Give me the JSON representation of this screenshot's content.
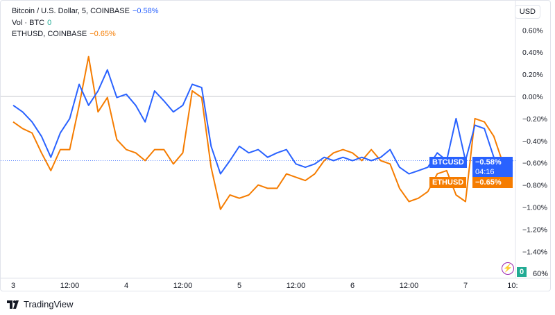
{
  "legend": {
    "main_title": "Bitcoin / U.S. Dollar, 5, COINBASE",
    "main_change": "−0.58%",
    "vol_label": "Vol · BTC",
    "vol_value": "0",
    "compare_title": "ETHUSD, COINBASE",
    "compare_change": "−0.65%"
  },
  "currency_button": "USD",
  "price_tags": {
    "btc_label": "BTCUSD",
    "btc_value": "−0.58%",
    "btc_countdown": "04:16",
    "eth_label": "ETHUSD",
    "eth_value": "−0.65%"
  },
  "volume_badge": "0",
  "volume_scale_label": "60%",
  "brand": "TradingView",
  "colors": {
    "btc": "#2962ff",
    "eth": "#f57c00",
    "volume_up": "#26a69a",
    "volume_down": "#ef5350",
    "alert": "#9c27b0"
  },
  "icons": {
    "alert": "lightning-icon",
    "logo": "tradingview-logo-icon"
  },
  "chart_data": {
    "type": "line",
    "ylim": [
      -1.5,
      0.7
    ],
    "y_ticks": [
      "0.60%",
      "0.40%",
      "0.20%",
      "0.00%",
      "−0.20%",
      "−0.40%",
      "−0.60%",
      "−0.80%",
      "−1.00%",
      "−1.20%",
      "−1.40%"
    ],
    "y_tick_values": [
      0.6,
      0.4,
      0.2,
      0,
      -0.2,
      -0.4,
      -0.6,
      -0.8,
      -1.0,
      -1.2,
      -1.4
    ],
    "x_ticks": [
      "3",
      "12:00",
      "4",
      "12:00",
      "5",
      "12:00",
      "6",
      "12:00",
      "7",
      "10:"
    ],
    "x_tick_times": [
      "3 00:00",
      "3 12:00",
      "4 00:00",
      "4 12:00",
      "5 00:00",
      "5 12:00",
      "6 00:00",
      "6 12:00",
      "7 00:00",
      "7 10:00"
    ],
    "x": [
      "3 00:00",
      "3 02:00",
      "3 04:00",
      "3 06:00",
      "3 08:00",
      "3 10:00",
      "3 12:00",
      "3 14:00",
      "3 16:00",
      "3 18:00",
      "3 20:00",
      "3 22:00",
      "4 00:00",
      "4 02:00",
      "4 04:00",
      "4 06:00",
      "4 08:00",
      "4 10:00",
      "4 12:00",
      "4 14:00",
      "4 16:00",
      "4 18:00",
      "4 20:00",
      "4 22:00",
      "5 00:00",
      "5 02:00",
      "5 04:00",
      "5 06:00",
      "5 08:00",
      "5 10:00",
      "5 12:00",
      "5 14:00",
      "5 16:00",
      "5 18:00",
      "5 20:00",
      "5 22:00",
      "6 00:00",
      "6 02:00",
      "6 04:00",
      "6 06:00",
      "6 08:00",
      "6 10:00",
      "6 12:00",
      "6 14:00",
      "6 16:00",
      "6 18:00",
      "6 20:00",
      "6 22:00",
      "7 00:00",
      "7 02:00",
      "7 04:00",
      "7 06:00",
      "7 08:00",
      "7 10:00"
    ],
    "series": [
      {
        "name": "BTCUSD",
        "values": [
          -0.08,
          -0.14,
          -0.23,
          -0.36,
          -0.55,
          -0.33,
          -0.2,
          0.11,
          -0.08,
          0.05,
          0.24,
          -0.01,
          0.02,
          -0.08,
          -0.23,
          0.05,
          -0.04,
          -0.14,
          -0.08,
          0.11,
          0.08,
          -0.45,
          -0.7,
          -0.58,
          -0.45,
          -0.51,
          -0.48,
          -0.55,
          -0.51,
          -0.48,
          -0.61,
          -0.64,
          -0.61,
          -0.55,
          -0.58,
          -0.55,
          -0.58,
          -0.55,
          -0.58,
          -0.55,
          -0.48,
          -0.64,
          -0.7,
          -0.67,
          -0.64,
          -0.51,
          -0.58,
          -0.2,
          -0.58,
          -0.26,
          -0.29,
          -0.55,
          -0.64,
          -0.58
        ]
      },
      {
        "name": "ETHUSD",
        "values": [
          -0.23,
          -0.29,
          -0.33,
          -0.51,
          -0.67,
          -0.48,
          -0.48,
          -0.08,
          0.36,
          -0.14,
          -0.01,
          -0.39,
          -0.48,
          -0.51,
          -0.58,
          -0.48,
          -0.48,
          -0.61,
          -0.51,
          0.05,
          -0.01,
          -0.64,
          -1.02,
          -0.89,
          -0.92,
          -0.89,
          -0.8,
          -0.83,
          -0.83,
          -0.7,
          -0.73,
          -0.76,
          -0.7,
          -0.58,
          -0.51,
          -0.48,
          -0.51,
          -0.58,
          -0.48,
          -0.58,
          -0.61,
          -0.83,
          -0.95,
          -0.92,
          -0.86,
          -0.7,
          -0.67,
          -0.89,
          -0.95,
          -0.2,
          -0.23,
          -0.36,
          -0.61,
          -0.64
        ]
      }
    ]
  }
}
